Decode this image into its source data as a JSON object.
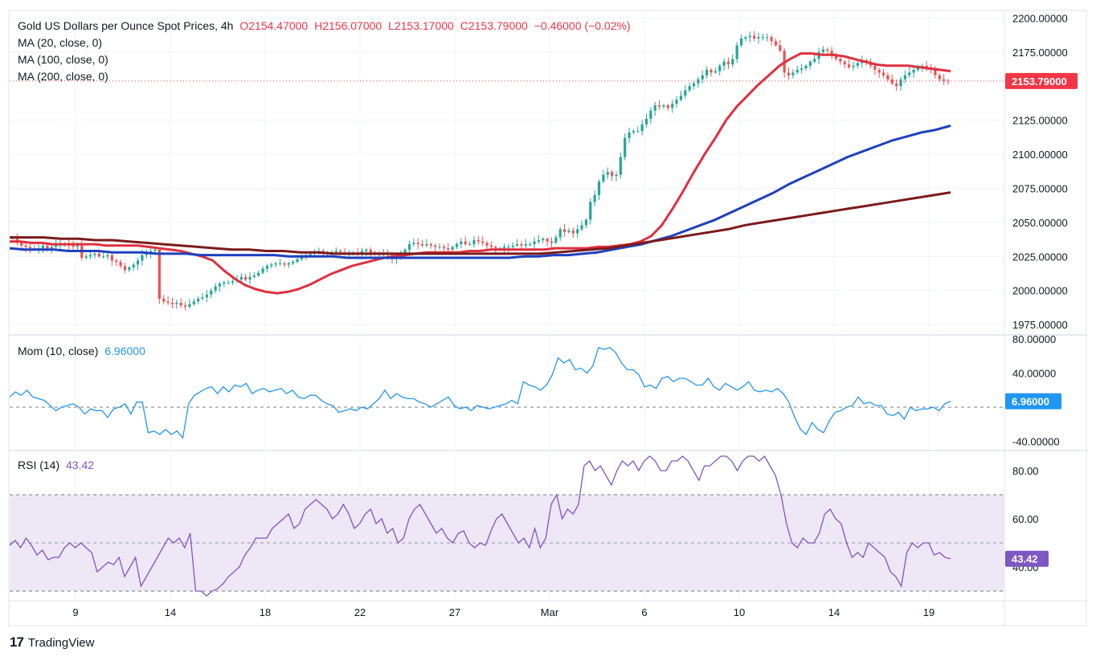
{
  "header": {
    "symbol": "Gold US Dollars per Ounce Spot Prices, 4h",
    "open": "O2154.47000",
    "high": "H2156.07000",
    "low": "L2153.17000",
    "close": "C2153.79000",
    "change": "−0.46000 (−0.02%)"
  },
  "ma_legend": [
    "MA (20, close, 0)",
    "MA (100, close, 0)",
    "MA (200, close, 0)"
  ],
  "momentum": {
    "label": "Mom (10, close)",
    "value": "6.96000"
  },
  "rsi": {
    "label": "RSI (14)",
    "value": "43.42"
  },
  "brand": {
    "name": "TradingView"
  },
  "colors": {
    "up": "#26a69a",
    "down": "#ef5350",
    "ma20": "#e0303f",
    "ma100": "#1e40c0",
    "ma200": "#7b1b1b",
    "momentum": "#2196f3",
    "rsi": "#7e57c2",
    "rsi_band": "#ede7f6",
    "last_price_badge": "#f23645",
    "mom_badge": "#2196f3",
    "rsi_badge": "#7e57c2"
  },
  "chart_data": [
    {
      "type": "candlestick",
      "title": "Gold US Dollars per Ounce Spot Prices, 4h",
      "x_tick_labels": [
        "9",
        "14",
        "18",
        "22",
        "27",
        "Mar",
        "6",
        "10",
        "14",
        "19"
      ],
      "y_tick_labels": [
        "2200.00000",
        "2175.00000",
        "2125.00000",
        "2100.00000",
        "2075.00000",
        "2050.00000",
        "2025.00000",
        "2000.00000",
        "1975.00000"
      ],
      "ylim": [
        1968,
        2205
      ],
      "last_price": 2153.79,
      "last_price_label": "2153.79000",
      "close_series": [
        2038,
        2035,
        2033,
        2032,
        2031,
        2031,
        2031,
        2033,
        2031,
        2032,
        2033,
        2034,
        2034,
        2033,
        2032,
        2033,
        2024,
        2025,
        2026,
        2027,
        2025,
        2025,
        2026,
        2022,
        2021,
        2018,
        2015,
        2017,
        2019,
        2022,
        2026,
        2027,
        2029,
        2030,
        1994,
        1992,
        1991,
        1990,
        1991,
        1989,
        1988,
        1990,
        1992,
        1994,
        1995,
        1997,
        2000,
        2003,
        2005,
        2006,
        2006,
        2007,
        2008,
        2010,
        2008,
        2010,
        2011,
        2013,
        2016,
        2018,
        2019,
        2020,
        2020,
        2019,
        2020,
        2021,
        2023,
        2025,
        2026,
        2027,
        2028,
        2029,
        2027,
        2028,
        2028,
        2029,
        2028,
        2027,
        2028,
        2028,
        2027,
        2029,
        2030,
        2028,
        2027,
        2026,
        2028,
        2026,
        2023,
        2024,
        2026,
        2030,
        2034,
        2035,
        2034,
        2033,
        2034,
        2033,
        2032,
        2032,
        2031,
        2030,
        2032,
        2034,
        2036,
        2034,
        2034,
        2037,
        2036,
        2035,
        2033,
        2032,
        2031,
        2031,
        2032,
        2032,
        2033,
        2034,
        2033,
        2034,
        2034,
        2036,
        2037,
        2038,
        2036,
        2035,
        2039,
        2045,
        2043,
        2044,
        2042,
        2045,
        2048,
        2052,
        2065,
        2070,
        2080,
        2085,
        2087,
        2084,
        2085,
        2098,
        2112,
        2116,
        2117,
        2117,
        2122,
        2126,
        2132,
        2136,
        2135,
        2136,
        2134,
        2137,
        2140,
        2143,
        2147,
        2150,
        2152,
        2155,
        2158,
        2162,
        2160,
        2161,
        2165,
        2168,
        2166,
        2170,
        2180,
        2185,
        2186,
        2187,
        2185,
        2186,
        2186,
        2186,
        2183,
        2180,
        2176,
        2160,
        2158,
        2160,
        2162,
        2163,
        2165,
        2168,
        2170,
        2175,
        2177,
        2176,
        2173,
        2170,
        2168,
        2166,
        2164,
        2165,
        2167,
        2169,
        2168,
        2165,
        2162,
        2160,
        2158,
        2155,
        2152,
        2150,
        2155,
        2158,
        2160,
        2162,
        2164,
        2165,
        2163,
        2162,
        2158,
        2155,
        2154,
        2153.79
      ],
      "series": [
        {
          "name": "MA (20, close, 0)",
          "values": [
            2036,
            2036,
            2035,
            2035,
            2034,
            2034,
            2034,
            2034,
            2034,
            2033,
            2033,
            2033,
            2033,
            2032,
            2031,
            2030,
            2029,
            2027,
            2025,
            2022,
            2015,
            2009,
            2004,
            2001,
            1999,
            1998,
            1999,
            2001,
            2004,
            2008,
            2012,
            2015,
            2018,
            2020,
            2022,
            2024,
            2025,
            2026,
            2027,
            2028,
            2028,
            2028,
            2028,
            2029,
            2029,
            2030,
            2030,
            2030,
            2030,
            2030,
            2030,
            2031,
            2031,
            2031,
            2031,
            2032,
            2032,
            2033,
            2034,
            2036,
            2040,
            2048,
            2060,
            2073,
            2087,
            2100,
            2112,
            2125,
            2135,
            2143,
            2151,
            2158,
            2165,
            2170,
            2174,
            2174,
            2173,
            2173,
            2172,
            2170,
            2168,
            2166,
            2165,
            2165,
            2165,
            2164,
            2163,
            2162,
            2161
          ]
        },
        {
          "name": "MA (100, close, 0)",
          "values": [
            2031,
            2030,
            2030,
            2030,
            2029,
            2029,
            2029,
            2028,
            2028,
            2028,
            2027,
            2027,
            2027,
            2026,
            2026,
            2026,
            2026,
            2026,
            2026,
            2025,
            2025,
            2025,
            2025,
            2024,
            2024,
            2024,
            2024,
            2024,
            2024,
            2024,
            2024,
            2024,
            2024,
            2024,
            2024,
            2025,
            2025,
            2026,
            2026,
            2027,
            2028,
            2030,
            2032,
            2034,
            2037,
            2040,
            2044,
            2048,
            2052,
            2057,
            2062,
            2067,
            2072,
            2078,
            2083,
            2088,
            2093,
            2098,
            2102,
            2106,
            2110,
            2113,
            2116,
            2118,
            2121
          ]
        },
        {
          "name": "MA (200, close, 0)",
          "values": [
            2039,
            2039,
            2039,
            2038,
            2038,
            2037,
            2037,
            2036,
            2035,
            2034,
            2033,
            2032,
            2031,
            2030,
            2030,
            2029,
            2029,
            2028,
            2028,
            2027,
            2027,
            2027,
            2027,
            2027,
            2027,
            2027,
            2027,
            2027,
            2027,
            2027,
            2027,
            2027,
            2028,
            2029,
            2030,
            2031,
            2033,
            2035,
            2037,
            2039,
            2041,
            2043,
            2045,
            2048,
            2050,
            2052,
            2054,
            2056,
            2058,
            2060,
            2062,
            2064,
            2066,
            2068,
            2070,
            2072
          ]
        }
      ]
    },
    {
      "type": "line",
      "title": "Mom (10, close)",
      "y_tick_labels": [
        "80.00000",
        "40.00000",
        "-40.00000"
      ],
      "ylim": [
        -50,
        84
      ],
      "last_value_label": "6.96000",
      "series": [
        {
          "name": "Mom (10, close)",
          "values": [
            12,
            18,
            14,
            20,
            12,
            10,
            8,
            2,
            -4,
            0,
            2,
            4,
            0,
            -8,
            -2,
            -4,
            -4,
            -12,
            -2,
            0,
            4,
            -8,
            6,
            6,
            -30,
            -28,
            -32,
            -26,
            -32,
            -28,
            -36,
            4,
            14,
            18,
            22,
            24,
            16,
            24,
            18,
            26,
            24,
            28,
            16,
            20,
            22,
            18,
            20,
            22,
            16,
            20,
            12,
            10,
            14,
            14,
            8,
            4,
            2,
            -6,
            -4,
            -2,
            -4,
            0,
            -2,
            4,
            10,
            20,
            10,
            16,
            12,
            10,
            10,
            6,
            4,
            0,
            4,
            8,
            12,
            2,
            -2,
            0,
            -4,
            2,
            0,
            -2,
            0,
            2,
            4,
            8,
            4,
            30,
            26,
            24,
            20,
            26,
            38,
            58,
            52,
            56,
            44,
            46,
            40,
            48,
            70,
            68,
            70,
            64,
            52,
            44,
            44,
            38,
            24,
            26,
            22,
            34,
            36,
            30,
            34,
            34,
            30,
            26,
            26,
            34,
            24,
            20,
            28,
            24,
            20,
            24,
            30,
            20,
            18,
            20,
            18,
            22,
            16,
            6,
            -12,
            -26,
            -32,
            -18,
            -26,
            -30,
            -16,
            -6,
            -4,
            0,
            2,
            12,
            4,
            6,
            2,
            2,
            -8,
            -10,
            -6,
            -14,
            0,
            -4,
            -2,
            -2,
            0,
            -4,
            4,
            6.96
          ]
        }
      ]
    },
    {
      "type": "line",
      "title": "RSI (14)",
      "y_tick_labels": [
        "80.00",
        "60.00",
        "40.00"
      ],
      "ylim": [
        26,
        88
      ],
      "band": [
        30,
        70
      ],
      "midline": 50,
      "last_value_label": "43.42",
      "series": [
        {
          "name": "RSI (14)",
          "values": [
            49,
            51,
            48,
            52,
            49,
            45,
            47,
            43,
            44,
            44,
            48,
            50,
            48,
            50,
            48,
            46,
            38,
            40,
            42,
            41,
            44,
            36,
            40,
            44,
            32,
            36,
            40,
            44,
            48,
            52,
            50,
            52,
            48,
            54,
            30,
            30,
            28,
            30,
            31,
            33,
            36,
            38,
            40,
            45,
            48,
            52,
            52,
            52,
            56,
            58,
            60,
            62,
            56,
            58,
            64,
            66,
            68,
            66,
            64,
            60,
            62,
            66,
            62,
            56,
            58,
            62,
            64,
            58,
            60,
            54,
            56,
            50,
            52,
            60,
            64,
            66,
            62,
            58,
            54,
            56,
            52,
            50,
            54,
            55,
            50,
            48,
            50,
            49,
            55,
            60,
            62,
            58,
            54,
            50,
            52,
            48,
            56,
            48,
            52,
            66,
            70,
            60,
            64,
            62,
            66,
            82,
            84,
            80,
            82,
            78,
            74,
            80,
            84,
            82,
            84,
            80,
            84,
            86,
            84,
            80,
            80,
            84,
            84,
            86,
            84,
            80,
            76,
            82,
            82,
            84,
            86,
            86,
            84,
            80,
            84,
            86,
            86,
            84,
            86,
            82,
            78,
            70,
            58,
            50,
            48,
            52,
            50,
            50,
            54,
            62,
            64,
            60,
            58,
            50,
            44,
            46,
            44,
            50,
            48,
            46,
            44,
            38,
            36,
            32,
            46,
            50,
            48,
            50,
            50,
            45,
            46,
            44,
            43.42
          ]
        }
      ]
    }
  ]
}
